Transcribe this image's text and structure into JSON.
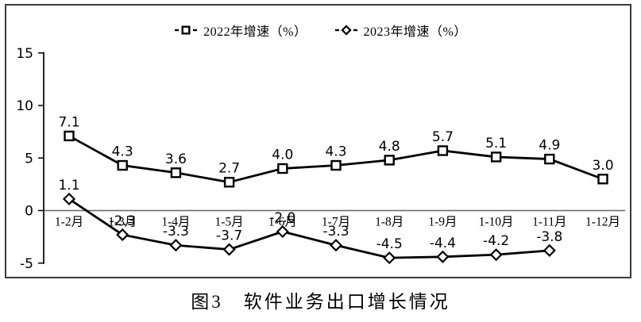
{
  "chart_data": {
    "type": "line",
    "caption": "图3　软件业务出口增长情况",
    "categories": [
      "1-2月",
      "1-3月",
      "1-4月",
      "1-5月",
      "1-6月",
      "1-7月",
      "1-8月",
      "1-9月",
      "1-10月",
      "1-11月",
      "1-12月"
    ],
    "series": [
      {
        "name": "2022年增速（%）",
        "marker": "square",
        "values": [
          7.1,
          4.3,
          3.6,
          2.7,
          4.0,
          4.3,
          4.8,
          5.7,
          5.1,
          4.9,
          3.0
        ]
      },
      {
        "name": "2023年增速（%）",
        "marker": "diamond",
        "values": [
          1.1,
          -2.3,
          -3.3,
          -3.7,
          -2.0,
          -3.3,
          -4.5,
          -4.4,
          -4.2,
          -3.8,
          null
        ]
      }
    ],
    "ylim": [
      -5,
      15
    ],
    "yticks": [
      15,
      10,
      5,
      0,
      -5
    ],
    "grid": false,
    "legend_position": "top-center",
    "colors": {
      "line": "#000000",
      "zero_line": "#666666",
      "marker_fill": "#ffffff",
      "text": "#000000",
      "frame_border": "#3a3a3a"
    }
  }
}
